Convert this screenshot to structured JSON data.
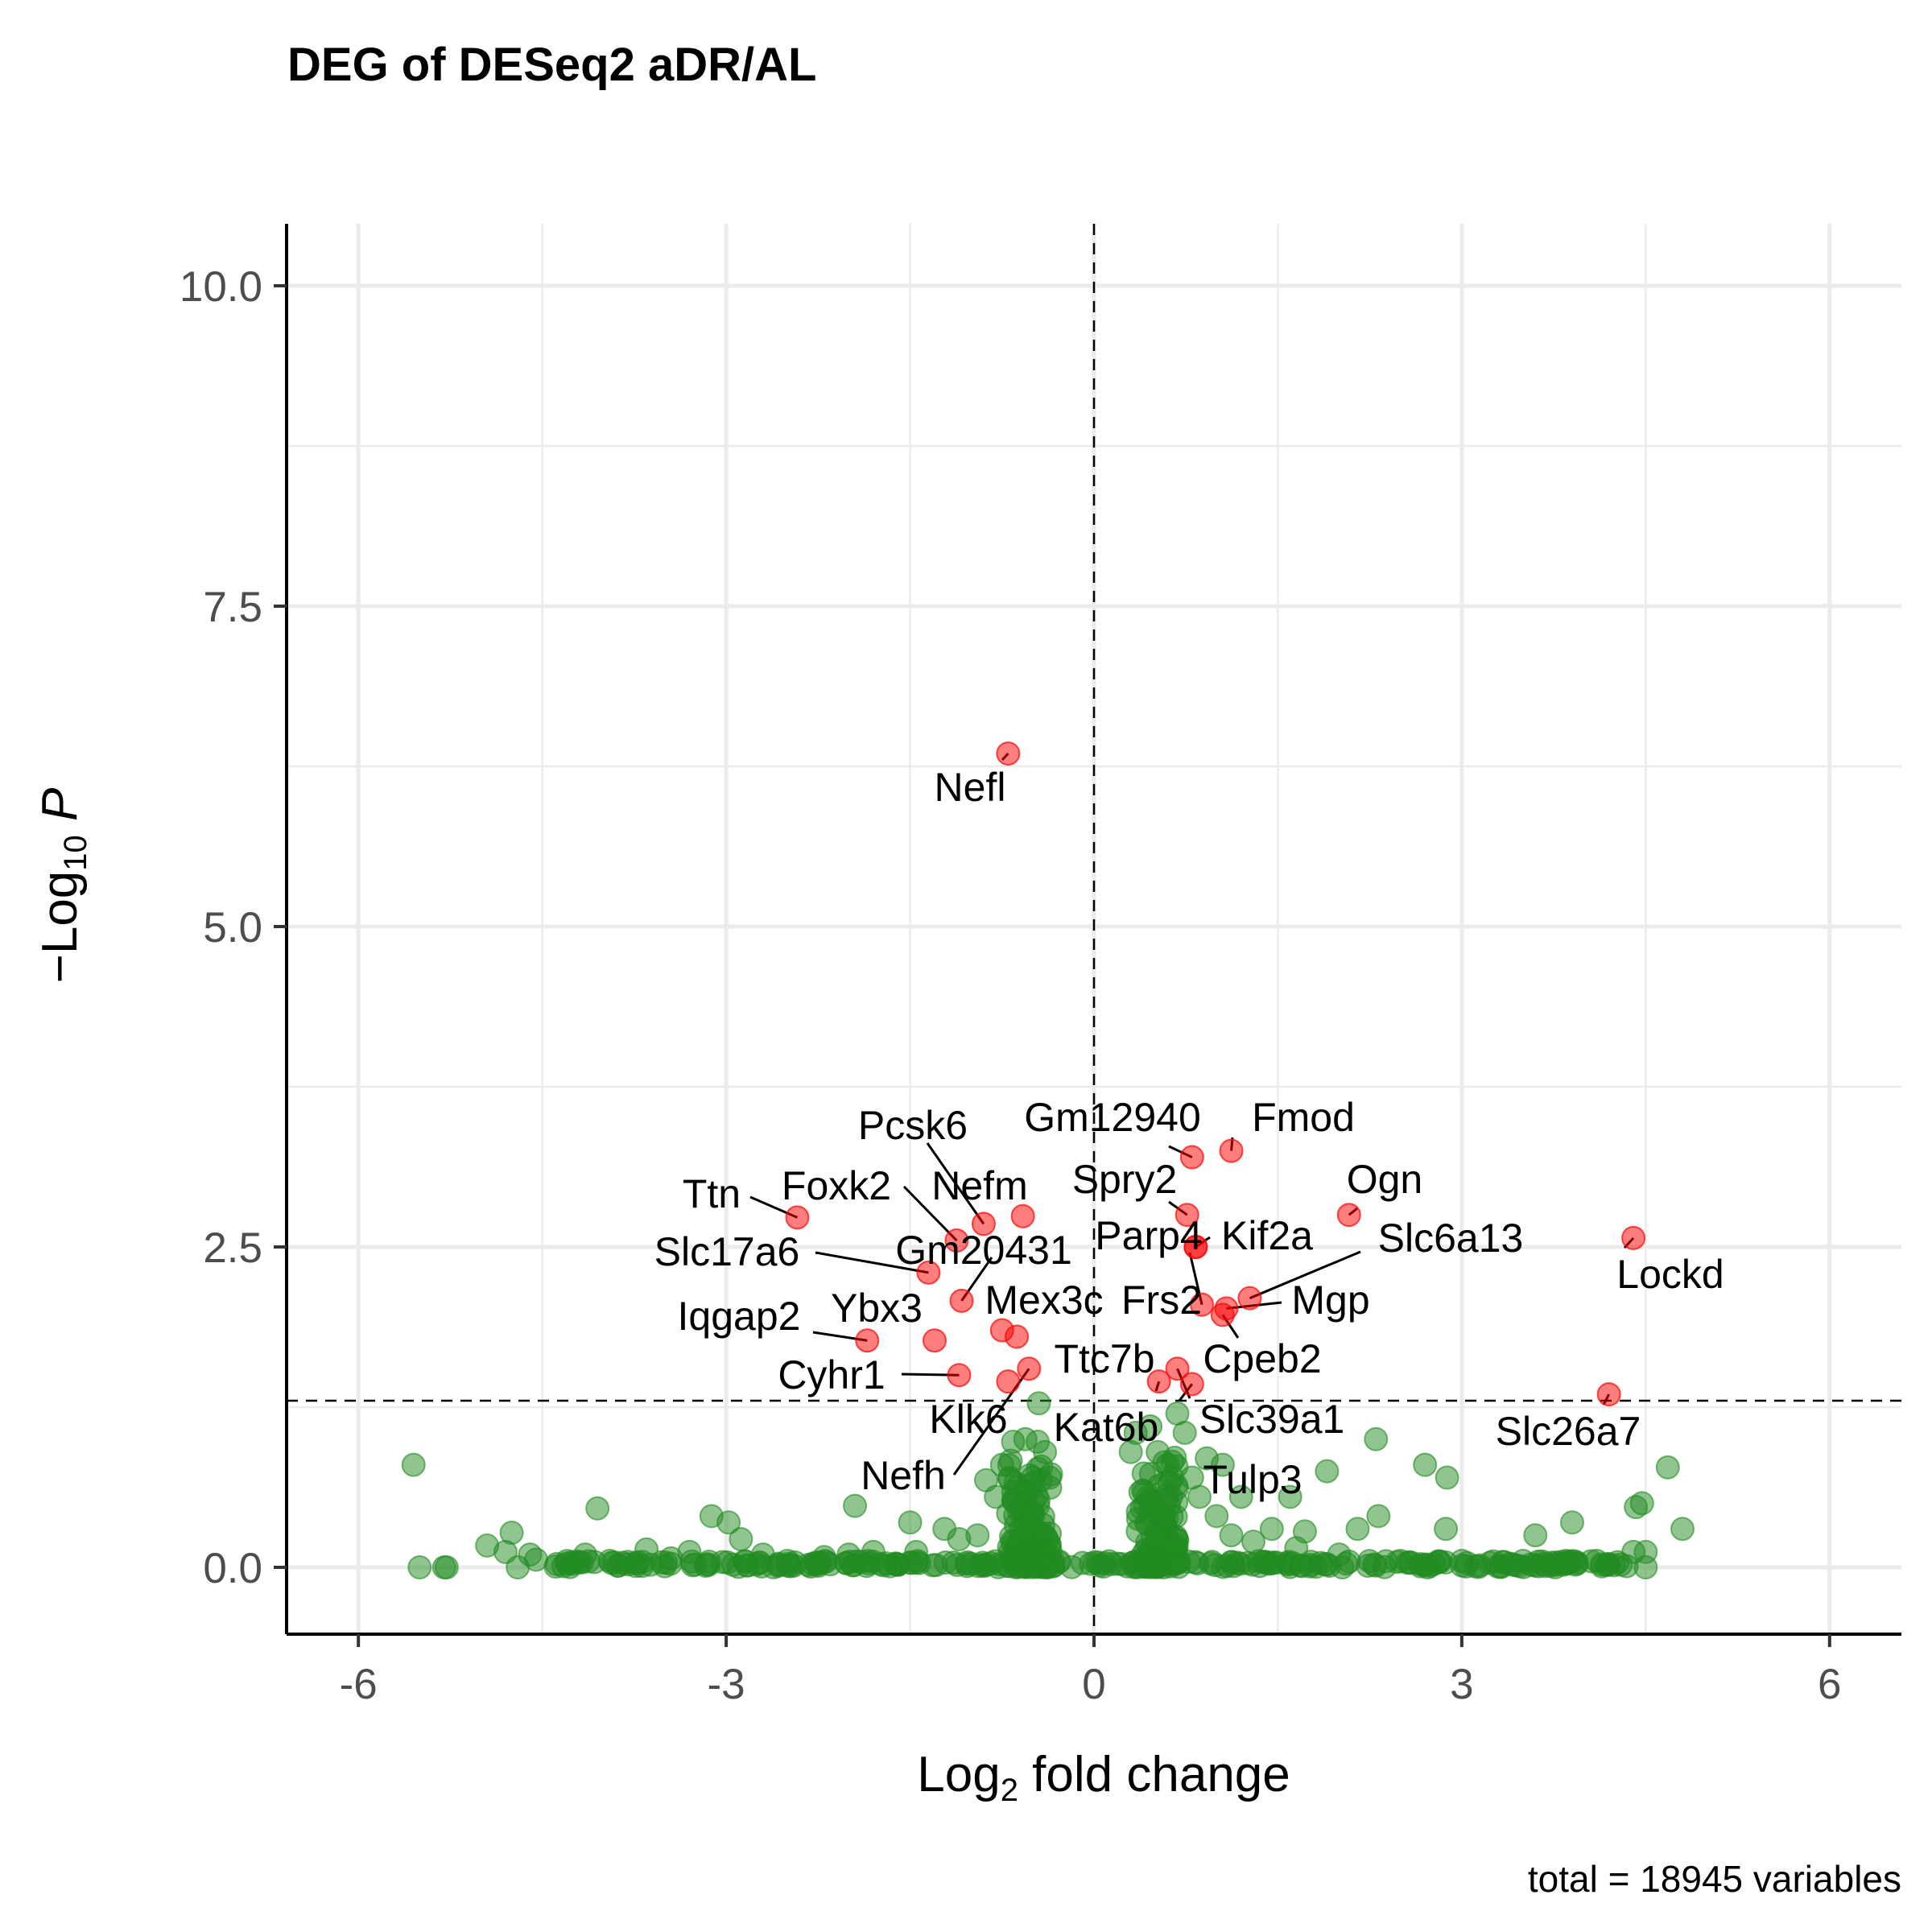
{
  "chart_data": {
    "type": "scatter",
    "title": "DEG of DESeq2 aDR/AL",
    "xlabel": "Log2 fold change",
    "ylabel": "-Log10 P",
    "caption": "total = 18945 variables",
    "xlim": [
      -6.6,
      6.6
    ],
    "ylim": [
      -0.2,
      10.5
    ],
    "xticks": [
      -6,
      -3,
      0,
      3,
      6
    ],
    "xtick_labels": [
      "-6",
      "-3",
      "0",
      "3",
      "6"
    ],
    "yticks": [
      0,
      2.5,
      5,
      7.5,
      10
    ],
    "ytick_labels": [
      "0.0",
      "2.5",
      "5.0",
      "7.5",
      "10.0"
    ],
    "grid": true,
    "thresholds": {
      "log2fc": 0,
      "neg_log10_p": 1.3
    },
    "colors": {
      "significant": "#ff0000",
      "not_significant": "#228b22"
    },
    "series": [
      {
        "name": "significant",
        "points": [
          {
            "gene": "Nefl",
            "x": -0.7,
            "y": 6.35
          },
          {
            "gene": "Gm12940",
            "x": 0.8,
            "y": 3.2
          },
          {
            "gene": "Fmod",
            "x": 1.12,
            "y": 3.25
          },
          {
            "gene": "Spry2",
            "x": 0.76,
            "y": 2.75
          },
          {
            "gene": "Ogn",
            "x": 2.08,
            "y": 2.75
          },
          {
            "gene": "Lockd",
            "x": 4.4,
            "y": 2.57
          },
          {
            "gene": "Pcsk6",
            "x": -0.9,
            "y": 2.68
          },
          {
            "gene": "Nefm",
            "x": -0.58,
            "y": 2.74
          },
          {
            "gene": "Ttn",
            "x": -2.42,
            "y": 2.73
          },
          {
            "gene": "Foxk2",
            "x": -1.12,
            "y": 2.55
          },
          {
            "gene": "Parp4",
            "x": 0.83,
            "y": 2.5
          },
          {
            "gene": "Kif2a",
            "x": 0.83,
            "y": 2.5
          },
          {
            "gene": "Slc6a13",
            "x": 1.27,
            "y": 2.1
          },
          {
            "gene": "Slc17a6",
            "x": -1.35,
            "y": 2.3
          },
          {
            "gene": "Gm20431",
            "x": -1.08,
            "y": 2.08
          },
          {
            "gene": "Mgp",
            "x": 1.08,
            "y": 2.02
          },
          {
            "gene": "Frs2",
            "x": 0.88,
            "y": 2.05
          },
          {
            "gene": "Cpeb2",
            "x": 1.05,
            "y": 1.97
          },
          {
            "gene": "Mex3c",
            "x": -0.75,
            "y": 1.85
          },
          {
            "gene": "Ybx3",
            "x": -1.3,
            "y": 1.77
          },
          {
            "gene": "Iqgap2",
            "x": -1.85,
            "y": 1.77
          },
          {
            "gene": "Ttc7b",
            "x": -0.63,
            "y": 1.8
          },
          {
            "gene": "Cyhr1",
            "x": -1.1,
            "y": 1.5
          },
          {
            "gene": "Klk6",
            "x": -0.7,
            "y": 1.45
          },
          {
            "gene": "Nefh",
            "x": -0.53,
            "y": 1.55
          },
          {
            "gene": "Kat6b",
            "x": 0.53,
            "y": 1.45
          },
          {
            "gene": "Slc39a1",
            "x": 0.68,
            "y": 1.55
          },
          {
            "gene": "Tulp3",
            "x": 0.8,
            "y": 1.43
          },
          {
            "gene": "Slc26a7",
            "x": 4.2,
            "y": 1.35
          }
        ]
      },
      {
        "name": "not significant",
        "points": [
          {
            "x": -5.55,
            "y": 0.8
          },
          {
            "x": -5.5,
            "y": 0.0
          },
          {
            "x": -5.3,
            "y": 0.0
          },
          {
            "x": -5.28,
            "y": 0.0
          },
          {
            "x": -4.95,
            "y": 0.17
          },
          {
            "x": -4.8,
            "y": 0.12
          },
          {
            "x": -4.75,
            "y": 0.27
          },
          {
            "x": -4.7,
            "y": 0.0
          },
          {
            "x": -4.6,
            "y": 0.1
          },
          {
            "x": -4.55,
            "y": 0.06
          },
          {
            "x": -4.3,
            "y": 0.03
          },
          {
            "x": -4.15,
            "y": 0.1
          },
          {
            "x": -4.05,
            "y": 0.46
          },
          {
            "x": -3.95,
            "y": 0.05
          },
          {
            "x": -3.65,
            "y": 0.14
          },
          {
            "x": -3.45,
            "y": 0.07
          },
          {
            "x": -3.3,
            "y": 0.12
          },
          {
            "x": -3.12,
            "y": 0.4
          },
          {
            "x": -2.98,
            "y": 0.35
          },
          {
            "x": -2.88,
            "y": 0.22
          },
          {
            "x": -2.7,
            "y": 0.1
          },
          {
            "x": -2.5,
            "y": 0.05
          },
          {
            "x": -2.2,
            "y": 0.08
          },
          {
            "x": -2.0,
            "y": 0.1
          },
          {
            "x": -1.95,
            "y": 0.48
          },
          {
            "x": -1.8,
            "y": 0.12
          },
          {
            "x": -1.5,
            "y": 0.35
          },
          {
            "x": -1.45,
            "y": 0.12
          },
          {
            "x": -1.22,
            "y": 0.3
          },
          {
            "x": -1.1,
            "y": 0.22
          },
          {
            "x": -0.95,
            "y": 0.25
          },
          {
            "x": -0.88,
            "y": 0.68
          },
          {
            "x": -0.8,
            "y": 0.55
          },
          {
            "x": -0.75,
            "y": 0.8
          },
          {
            "x": -0.7,
            "y": 0.42
          },
          {
            "x": -0.66,
            "y": 0.98
          },
          {
            "x": -0.6,
            "y": 0.3
          },
          {
            "x": -0.56,
            "y": 1.0
          },
          {
            "x": -0.5,
            "y": 0.7
          },
          {
            "x": -0.45,
            "y": 1.28
          },
          {
            "x": -0.4,
            "y": 0.9
          },
          {
            "x": -0.36,
            "y": 0.7
          },
          {
            "x": 0.3,
            "y": 0.9
          },
          {
            "x": 0.34,
            "y": 1.05
          },
          {
            "x": 0.4,
            "y": 0.6
          },
          {
            "x": 0.46,
            "y": 1.1
          },
          {
            "x": 0.52,
            "y": 0.9
          },
          {
            "x": 0.6,
            "y": 0.8
          },
          {
            "x": 0.68,
            "y": 1.2
          },
          {
            "x": 0.74,
            "y": 1.05
          },
          {
            "x": 0.8,
            "y": 0.7
          },
          {
            "x": 0.86,
            "y": 0.55
          },
          {
            "x": 0.92,
            "y": 0.85
          },
          {
            "x": 1.0,
            "y": 0.4
          },
          {
            "x": 1.05,
            "y": 0.8
          },
          {
            "x": 1.12,
            "y": 0.25
          },
          {
            "x": 1.2,
            "y": 0.55
          },
          {
            "x": 1.3,
            "y": 0.2
          },
          {
            "x": 1.45,
            "y": 0.3
          },
          {
            "x": 1.6,
            "y": 0.55
          },
          {
            "x": 1.65,
            "y": 0.15
          },
          {
            "x": 1.72,
            "y": 0.28
          },
          {
            "x": 1.9,
            "y": 0.75
          },
          {
            "x": 2.0,
            "y": 0.1
          },
          {
            "x": 2.15,
            "y": 0.3
          },
          {
            "x": 2.32,
            "y": 0.4
          },
          {
            "x": 2.3,
            "y": 1.0
          },
          {
            "x": 2.5,
            "y": 0.05
          },
          {
            "x": 2.7,
            "y": 0.8
          },
          {
            "x": 2.87,
            "y": 0.3
          },
          {
            "x": 2.88,
            "y": 0.7
          },
          {
            "x": 3.0,
            "y": 0.05
          },
          {
            "x": 3.5,
            "y": 0.05
          },
          {
            "x": 3.6,
            "y": 0.25
          },
          {
            "x": 3.9,
            "y": 0.35
          },
          {
            "x": 3.85,
            "y": 0.05
          },
          {
            "x": 4.1,
            "y": 0.05
          },
          {
            "x": 4.4,
            "y": 0.12
          },
          {
            "x": 4.42,
            "y": 0.47
          },
          {
            "x": 4.47,
            "y": 0.5
          },
          {
            "x": 4.5,
            "y": 0.12
          },
          {
            "x": 4.5,
            "y": 0.0
          },
          {
            "x": 4.68,
            "y": 0.78
          },
          {
            "x": 4.8,
            "y": 0.3
          }
        ]
      }
    ],
    "labels": [
      {
        "text": "Nefl"
      },
      {
        "text": "Gm12940"
      },
      {
        "text": "Fmod"
      },
      {
        "text": "Spry2"
      },
      {
        "text": "Ogn"
      },
      {
        "text": "Lockd"
      },
      {
        "text": "Pcsk6"
      },
      {
        "text": "Nefm"
      },
      {
        "text": "Ttn"
      },
      {
        "text": "Foxk2"
      },
      {
        "text": "Parp4"
      },
      {
        "text": "Kif2a"
      },
      {
        "text": "Slc6a13"
      },
      {
        "text": "Slc17a6"
      },
      {
        "text": "Gm20431"
      },
      {
        "text": "Mgp"
      },
      {
        "text": "Frs2"
      },
      {
        "text": "Cpeb2"
      },
      {
        "text": "Mex3c"
      },
      {
        "text": "Ybx3"
      },
      {
        "text": "Iqgap2"
      },
      {
        "text": "Ttc7b"
      },
      {
        "text": "Cyhr1"
      },
      {
        "text": "Klk6"
      },
      {
        "text": "Nefh"
      },
      {
        "text": "Kat6b"
      },
      {
        "text": "Slc39a1"
      },
      {
        "text": "Tulp3"
      },
      {
        "text": "Slc26a7"
      }
    ]
  }
}
